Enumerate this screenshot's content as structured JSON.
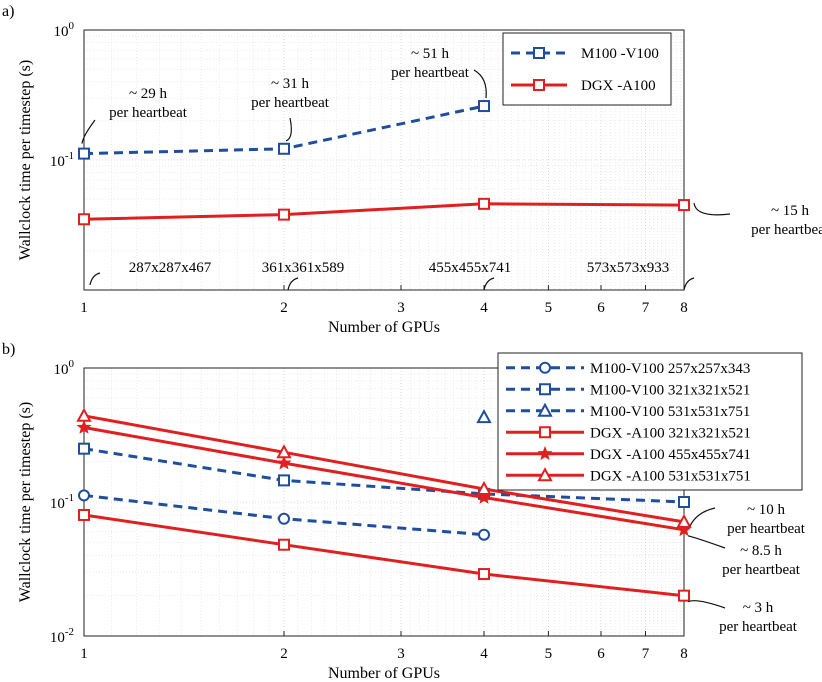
{
  "chart_data": [
    {
      "panel": "a)",
      "type": "line",
      "xlabel": "Number of GPUs",
      "ylabel": "Wallclock time per timestep (s)",
      "xscale": "log2",
      "yscale": "log",
      "xlim": [
        1,
        8
      ],
      "ylim": [
        0.01,
        1
      ],
      "xticks": [
        "1",
        "2",
        "3",
        "4",
        "5",
        "6",
        "7",
        "8"
      ],
      "yticks": [
        {
          "base": "10",
          "exp": "0"
        },
        {
          "base": "10",
          "exp": "-1"
        }
      ],
      "grid": true,
      "legend_position": "top-right",
      "series": [
        {
          "name": "M100 -V100",
          "color": "#1f4e9c",
          "dash": "dashed",
          "marker": "square",
          "x": [
            1,
            2,
            4
          ],
          "y": [
            0.112,
            0.122,
            0.26
          ]
        },
        {
          "name": "DGX -A100",
          "color": "#e02020",
          "dash": "solid",
          "marker": "square",
          "x": [
            1,
            2,
            4,
            8
          ],
          "y": [
            0.035,
            0.038,
            0.046,
            0.045
          ]
        }
      ],
      "annotations": [
        {
          "lines": [
            "~ 29 h",
            "per heartbeat"
          ]
        },
        {
          "lines": [
            "~ 31 h",
            "per heartbeat"
          ]
        },
        {
          "lines": [
            "~ 51 h",
            "per heartbeat"
          ]
        },
        {
          "lines": [
            "~ 15 h",
            "per heartbeat"
          ]
        },
        {
          "lines": [
            "287x287x467"
          ]
        },
        {
          "lines": [
            "361x361x589"
          ]
        },
        {
          "lines": [
            "455x455x741"
          ]
        },
        {
          "lines": [
            "573x573x933"
          ]
        }
      ]
    },
    {
      "panel": "b)",
      "type": "line",
      "xlabel": "Number of GPUs",
      "ylabel": "Wallclock time per timestep (s)",
      "xscale": "log2",
      "yscale": "log",
      "xlim": [
        1,
        8
      ],
      "ylim": [
        0.01,
        1
      ],
      "xticks": [
        "1",
        "2",
        "3",
        "4",
        "5",
        "6",
        "7",
        "8"
      ],
      "yticks": [
        {
          "base": "10",
          "exp": "0"
        },
        {
          "base": "10",
          "exp": "-1"
        },
        {
          "base": "10",
          "exp": "-2"
        }
      ],
      "grid": true,
      "legend_position": "top-right",
      "series": [
        {
          "name": "M100-V100 257x257x343",
          "color": "#1f4e9c",
          "dash": "dashed",
          "marker": "circle",
          "x": [
            1,
            2,
            4
          ],
          "y": [
            0.112,
            0.075,
            0.057
          ]
        },
        {
          "name": "M100-V100 321x321x521",
          "color": "#1f4e9c",
          "dash": "dashed",
          "marker": "square",
          "x": [
            1,
            2,
            4,
            8
          ],
          "y": [
            0.25,
            0.145,
            0.115,
            0.1
          ]
        },
        {
          "name": "M100-V100 531x531x751",
          "color": "#1f4e9c",
          "dash": "dashed",
          "marker": "triangle",
          "x": [
            4
          ],
          "y": [
            0.43
          ]
        },
        {
          "name": "DGX -A100 321x321x521",
          "color": "#e02020",
          "dash": "solid",
          "marker": "square",
          "x": [
            1,
            2,
            4,
            8
          ],
          "y": [
            0.08,
            0.048,
            0.029,
            0.02
          ]
        },
        {
          "name": "DGX -A100 455x455x741",
          "color": "#e02020",
          "dash": "solid",
          "marker": "star",
          "x": [
            1,
            2,
            4,
            8
          ],
          "y": [
            0.36,
            0.195,
            0.108,
            0.062
          ]
        },
        {
          "name": "DGX -A100 531x531x751",
          "color": "#e02020",
          "dash": "solid",
          "marker": "triangle",
          "x": [
            1,
            2,
            4,
            8
          ],
          "y": [
            0.44,
            0.235,
            0.125,
            0.071
          ]
        }
      ],
      "annotations": [
        {
          "lines": [
            "~ 10 h",
            "per heartbeat"
          ]
        },
        {
          "lines": [
            "~ 8.5 h",
            "per heartbeat"
          ]
        },
        {
          "lines": [
            "~ 3 h",
            "per heartbeat"
          ]
        }
      ]
    }
  ]
}
